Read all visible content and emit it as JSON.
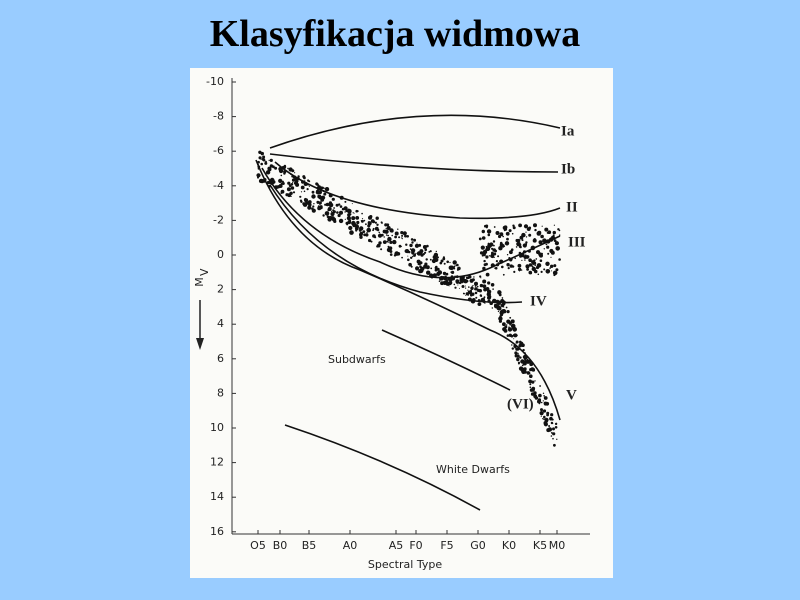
{
  "title": "Klasyfikacja widmowa",
  "figure": {
    "y_axis_label": "M",
    "y_axis_label_sub": "V",
    "y_ticks": [
      "-10",
      "-8",
      "-6",
      "-4",
      "-2",
      "0",
      "2",
      "4",
      "6",
      "8",
      "10",
      "12",
      "14",
      "16"
    ],
    "x_ticks": [
      "O5",
      "B0",
      "B5",
      "A0",
      "A5",
      "F0",
      "F5",
      "G0",
      "K0",
      "K5",
      "M0"
    ],
    "x_axis_label": "Spectral Type",
    "classes": [
      "Ia",
      "Ib",
      "II",
      "III",
      "IV",
      "V",
      "(VI)"
    ],
    "annotations": [
      "Subdwarfs",
      "White Dwarfs"
    ]
  }
}
